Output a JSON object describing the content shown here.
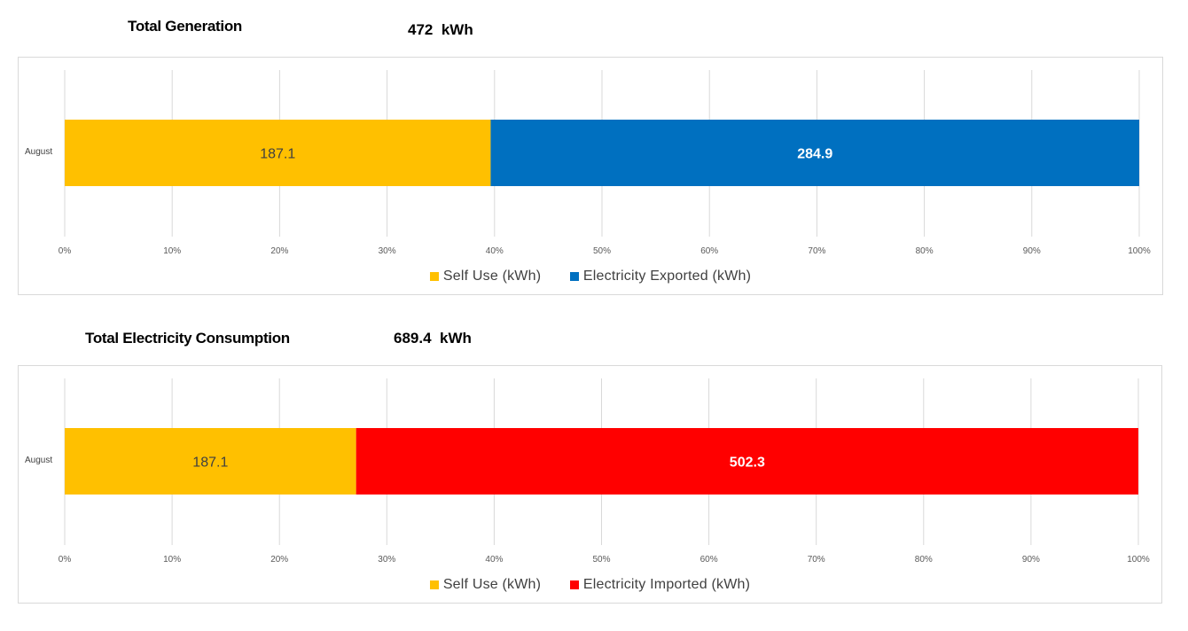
{
  "charts": [
    {
      "heading": "Total Generation",
      "total_value": "472",
      "total_unit": "kWh",
      "category_label": "August",
      "legend": [
        {
          "label": "Self Use (kWh)",
          "color": "#FFC000"
        },
        {
          "label": "Electricity Exported (kWh)",
          "color": "#0070C0"
        }
      ]
    },
    {
      "heading": "Total Electricity Consumption",
      "total_value": "689.4",
      "total_unit": "kWh",
      "category_label": "August",
      "legend": [
        {
          "label": "Self Use (kWh)",
          "color": "#FFC000"
        },
        {
          "label": "Electricity Imported (kWh)",
          "color": "#FF0000"
        }
      ]
    }
  ],
  "chart_data": [
    {
      "type": "bar",
      "orientation": "horizontal",
      "stacking": "percent",
      "categories": [
        "August"
      ],
      "series": [
        {
          "name": "Self Use (kWh)",
          "values": [
            187.1
          ],
          "color": "#FFC000",
          "label_color": "#404040"
        },
        {
          "name": "Electricity Exported (kWh)",
          "values": [
            284.9
          ],
          "color": "#0070C0",
          "label_color": "#FFFFFF"
        }
      ],
      "x_ticks": [
        "0%",
        "10%",
        "20%",
        "30%",
        "40%",
        "50%",
        "60%",
        "70%",
        "80%",
        "90%",
        "100%"
      ],
      "xlim": [
        0,
        100
      ],
      "grid": true,
      "legend_position": "bottom"
    },
    {
      "type": "bar",
      "orientation": "horizontal",
      "stacking": "percent",
      "categories": [
        "August"
      ],
      "series": [
        {
          "name": "Self Use (kWh)",
          "values": [
            187.1
          ],
          "color": "#FFC000",
          "label_color": "#404040"
        },
        {
          "name": "Electricity Imported (kWh)",
          "values": [
            502.3
          ],
          "color": "#FF0000",
          "label_color": "#FFFFFF"
        }
      ],
      "x_ticks": [
        "0%",
        "10%",
        "20%",
        "30%",
        "40%",
        "50%",
        "60%",
        "70%",
        "80%",
        "90%",
        "100%"
      ],
      "xlim": [
        0,
        100
      ],
      "grid": true,
      "legend_position": "bottom"
    }
  ]
}
